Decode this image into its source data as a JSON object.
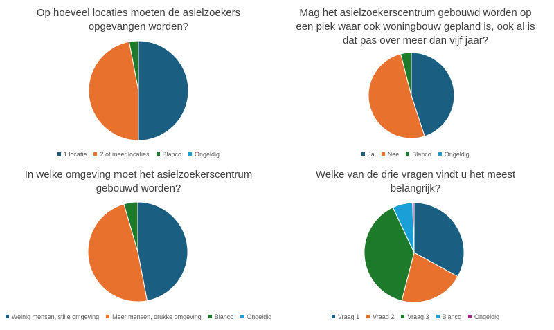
{
  "colors": {
    "blue": "#1a5f82",
    "orange": "#e8712e",
    "green": "#1e7a2b",
    "lightblue": "#1a9fd6",
    "purple": "#a1267c"
  },
  "chart_data": [
    {
      "type": "pie",
      "title": "Op hoeveel locaties moeten de asielzoekers opgevangen worden?",
      "categories": [
        "1 locatie",
        "2 of meer locaties",
        "Blanco",
        "Ongeldig"
      ],
      "values": [
        50,
        47,
        3,
        0
      ],
      "colors": [
        "#1a5f82",
        "#e8712e",
        "#1e7a2b",
        "#1a9fd6"
      ],
      "legend": "bottom"
    },
    {
      "type": "pie",
      "title": "Mag het asielzoekerscentrum gebouwd worden op een plek waar ook woningbouw gepland is, ook al is dat pas over meer dan vijf jaar?",
      "categories": [
        "Ja",
        "Nee",
        "Blanco",
        "Ongeldig"
      ],
      "values": [
        45,
        51,
        4,
        0
      ],
      "colors": [
        "#1a5f82",
        "#e8712e",
        "#1e7a2b",
        "#1a9fd6"
      ],
      "legend": "bottom"
    },
    {
      "type": "pie",
      "title": "In welke omgeving moet het asielzoekerscentrum gebouwd worden?",
      "categories": [
        "Weinig mensen, stille omgeving",
        "Meer mensen, drukke omgeving",
        "Blanco",
        "Ongeldig"
      ],
      "values": [
        47,
        48.5,
        4.5,
        0
      ],
      "colors": [
        "#1a5f82",
        "#e8712e",
        "#1e7a2b",
        "#1a9fd6"
      ],
      "legend": "bottom"
    },
    {
      "type": "pie",
      "title": "Welke van de drie vragen vindt u het meest belangrijk?",
      "categories": [
        "Vraag 1",
        "Vraag 2",
        "Vraag 3",
        "Blanco",
        "Ongeldig"
      ],
      "values": [
        33,
        21,
        39,
        6.5,
        0.5
      ],
      "colors": [
        "#1a5f82",
        "#e8712e",
        "#1e7a2b",
        "#1a9fd6",
        "#a1267c"
      ],
      "legend": "bottom"
    }
  ]
}
